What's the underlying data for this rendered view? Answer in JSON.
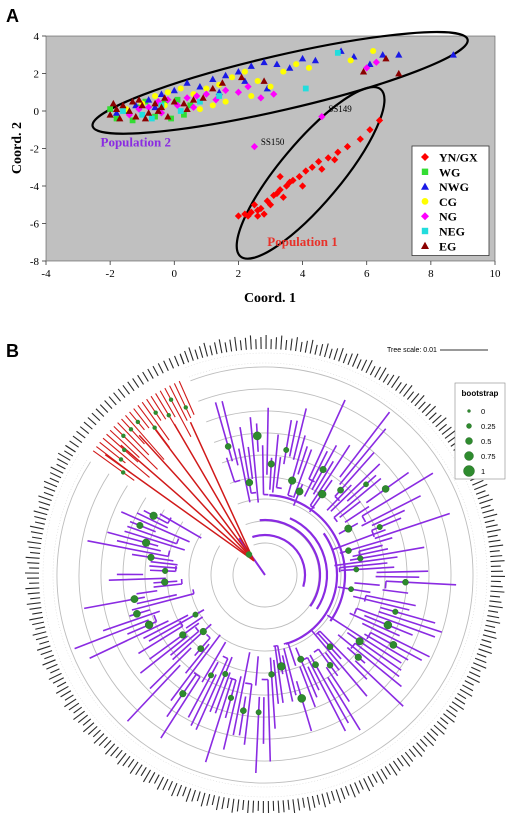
{
  "chart_data": [
    {
      "type": "scatter",
      "panel_label": "A",
      "xlabel": "Coord. 1",
      "ylabel": "Coord. 2",
      "xlim": [
        -4,
        10
      ],
      "ylim": [
        -8,
        4
      ],
      "xticks": [
        -4,
        -2,
        0,
        2,
        4,
        6,
        8,
        10
      ],
      "yticks": [
        -8,
        -6,
        -4,
        -2,
        0,
        2,
        4
      ],
      "background": "#c0c0c0",
      "legend_position": "bottom-right",
      "annotations": [
        {
          "text": "Population 2",
          "x": -2.3,
          "y": -1.9,
          "color": "#8a2be2"
        },
        {
          "text": "Population 1",
          "x": 2.9,
          "y": -7.2,
          "color": "#e8322a"
        },
        {
          "text": "SS149",
          "x": 4.8,
          "y": -0.05,
          "color": "#000000"
        },
        {
          "text": "SS150",
          "x": 2.7,
          "y": -1.8,
          "color": "#000000"
        }
      ],
      "ellipses": [
        {
          "name": "Population 2",
          "cx": 3.3,
          "cy": 1.5,
          "rx": 6.0,
          "ry": 0.85,
          "angle_deg": 13
        },
        {
          "name": "Population 1",
          "cx": 4.25,
          "cy": -3.3,
          "rx": 3.4,
          "ry": 0.95,
          "angle_deg": 50
        }
      ],
      "series": [
        {
          "name": "YN/GX",
          "marker": "diamond",
          "color": "#ff0000",
          "points": [
            [
              2.0,
              -5.6
            ],
            [
              2.2,
              -5.5
            ],
            [
              2.4,
              -5.4
            ],
            [
              2.6,
              -5.3
            ],
            [
              2.8,
              -5.5
            ],
            [
              2.5,
              -5.0
            ],
            [
              2.9,
              -4.8
            ],
            [
              3.1,
              -4.5
            ],
            [
              3.3,
              -4.2
            ],
            [
              3.5,
              -4.0
            ],
            [
              3.7,
              -3.7
            ],
            [
              3.9,
              -3.5
            ],
            [
              4.1,
              -3.2
            ],
            [
              4.3,
              -3.0
            ],
            [
              4.5,
              -2.7
            ],
            [
              4.8,
              -2.5
            ],
            [
              5.1,
              -2.2
            ],
            [
              5.4,
              -1.9
            ],
            [
              5.8,
              -1.5
            ],
            [
              6.1,
              -1.0
            ],
            [
              6.4,
              -0.5
            ],
            [
              3.0,
              -5.0
            ],
            [
              3.4,
              -4.6
            ],
            [
              4.0,
              -4.0
            ],
            [
              2.7,
              -5.2
            ],
            [
              3.2,
              -4.4
            ],
            [
              3.6,
              -3.8
            ],
            [
              2.3,
              -5.6
            ],
            [
              4.6,
              -3.1
            ],
            [
              5.0,
              -2.6
            ],
            [
              2.6,
              -5.6
            ],
            [
              3.3,
              -3.5
            ]
          ]
        },
        {
          "name": "WG",
          "marker": "square",
          "color": "#33dd33",
          "points": [
            [
              -1.8,
              -0.4
            ],
            [
              -1.5,
              0.0
            ],
            [
              -1.1,
              0.2
            ],
            [
              -0.6,
              -0.3
            ],
            [
              -0.3,
              0.4
            ],
            [
              0.1,
              0.6
            ],
            [
              0.5,
              0.3
            ],
            [
              -1.3,
              -0.5
            ],
            [
              -2.0,
              0.1
            ],
            [
              -0.9,
              0.5
            ],
            [
              0.3,
              -0.2
            ],
            [
              -0.1,
              -0.4
            ]
          ]
        },
        {
          "name": "NWG",
          "marker": "triangle",
          "color": "#1a1ae6",
          "points": [
            [
              -1.8,
              -0.1
            ],
            [
              -1.2,
              0.3
            ],
            [
              -0.8,
              0.6
            ],
            [
              -0.4,
              0.9
            ],
            [
              0.0,
              1.1
            ],
            [
              0.4,
              1.5
            ],
            [
              0.8,
              1.3
            ],
            [
              1.2,
              1.7
            ],
            [
              1.6,
              1.9
            ],
            [
              2.0,
              2.1
            ],
            [
              2.4,
              2.4
            ],
            [
              2.8,
              2.6
            ],
            [
              3.2,
              2.5
            ],
            [
              3.6,
              2.3
            ],
            [
              4.0,
              2.8
            ],
            [
              4.4,
              2.7
            ],
            [
              5.2,
              3.2
            ],
            [
              5.6,
              2.9
            ],
            [
              6.1,
              2.5
            ],
            [
              6.5,
              3.0
            ],
            [
              7.0,
              3.0
            ],
            [
              8.7,
              3.0
            ],
            [
              1.4,
              1.0
            ],
            [
              2.2,
              1.6
            ],
            [
              2.9,
              1.2
            ],
            [
              -0.6,
              0.2
            ]
          ]
        },
        {
          "name": "CG",
          "marker": "circle",
          "color": "#ffff00",
          "points": [
            [
              -1.5,
              0.1
            ],
            [
              -1.0,
              0.4
            ],
            [
              -0.6,
              0.8
            ],
            [
              -0.2,
              1.0
            ],
            [
              0.2,
              1.2
            ],
            [
              0.6,
              0.9
            ],
            [
              1.0,
              1.2
            ],
            [
              1.4,
              1.4
            ],
            [
              1.8,
              1.8
            ],
            [
              2.2,
              2.1
            ],
            [
              2.6,
              1.6
            ],
            [
              3.0,
              1.3
            ],
            [
              3.4,
              2.1
            ],
            [
              3.8,
              2.5
            ],
            [
              4.2,
              2.3
            ],
            [
              5.5,
              2.7
            ],
            [
              6.2,
              3.2
            ],
            [
              1.6,
              0.5
            ],
            [
              0.8,
              0.1
            ],
            [
              -0.3,
              0.3
            ],
            [
              2.4,
              0.8
            ],
            [
              1.2,
              0.3
            ]
          ]
        },
        {
          "name": "NG",
          "marker": "diamond",
          "color": "#ff00ff",
          "points": [
            [
              -1.4,
              -0.2
            ],
            [
              -1.1,
              0.1
            ],
            [
              -0.8,
              0.2
            ],
            [
              -0.5,
              0.5
            ],
            [
              -0.2,
              0.6
            ],
            [
              0.1,
              0.3
            ],
            [
              0.4,
              0.7
            ],
            [
              0.7,
              0.8
            ],
            [
              1.0,
              0.9
            ],
            [
              1.3,
              0.6
            ],
            [
              1.6,
              1.1
            ],
            [
              2.0,
              1.0
            ],
            [
              2.3,
              1.3
            ],
            [
              2.7,
              0.7
            ],
            [
              3.1,
              0.9
            ],
            [
              6.0,
              2.3
            ],
            [
              6.3,
              2.6
            ],
            [
              4.6,
              -0.3
            ],
            [
              2.5,
              -1.9
            ],
            [
              -0.4,
              -0.1
            ],
            [
              0.6,
              0.2
            ]
          ]
        },
        {
          "name": "NEG",
          "marker": "square",
          "color": "#22dddd",
          "points": [
            [
              -1.6,
              0.0
            ],
            [
              -1.0,
              -0.2
            ],
            [
              -0.4,
              0.3
            ],
            [
              0.2,
              0.0
            ],
            [
              0.8,
              0.5
            ],
            [
              1.4,
              0.8
            ],
            [
              4.1,
              1.2
            ],
            [
              5.1,
              3.1
            ],
            [
              -0.7,
              -0.4
            ]
          ]
        },
        {
          "name": "EG",
          "marker": "triangle",
          "color": "#8b0000",
          "points": [
            [
              -2.0,
              -0.2
            ],
            [
              -1.8,
              0.1
            ],
            [
              -1.6,
              0.3
            ],
            [
              -1.4,
              0.0
            ],
            [
              -1.2,
              -0.3
            ],
            [
              -1.0,
              0.3
            ],
            [
              -0.8,
              -0.1
            ],
            [
              -0.6,
              0.4
            ],
            [
              -0.4,
              0.2
            ],
            [
              -0.2,
              -0.3
            ],
            [
              0.0,
              0.5
            ],
            [
              0.3,
              0.4
            ],
            [
              0.6,
              0.6
            ],
            [
              -1.3,
              0.5
            ],
            [
              -0.9,
              -0.4
            ],
            [
              -0.5,
              0.0
            ],
            [
              -1.7,
              -0.4
            ],
            [
              -1.1,
              0.6
            ],
            [
              -0.3,
              0.7
            ],
            [
              0.4,
              0.1
            ],
            [
              0.9,
              0.7
            ],
            [
              1.2,
              1.2
            ],
            [
              1.5,
              1.5
            ],
            [
              2.1,
              1.8
            ],
            [
              2.8,
              1.6
            ],
            [
              7.0,
              2.0
            ],
            [
              6.6,
              2.8
            ],
            [
              5.9,
              2.1
            ],
            [
              -1.9,
              0.4
            ]
          ]
        }
      ]
    },
    {
      "type": "tree",
      "panel_label": "B",
      "layout": "circular",
      "tree_scale_label": "Tree scale: 0.01",
      "legend_title": "bootstrap",
      "legend_position": "top-right",
      "bootstrap_legend": [
        0,
        0.25,
        0.5,
        0.75,
        1
      ],
      "node_color": "#2e8b2e",
      "clade_colors": {
        "population_1": "#d11a1a",
        "population_2": "#8a2be2"
      },
      "ring_count": 9
    }
  ]
}
